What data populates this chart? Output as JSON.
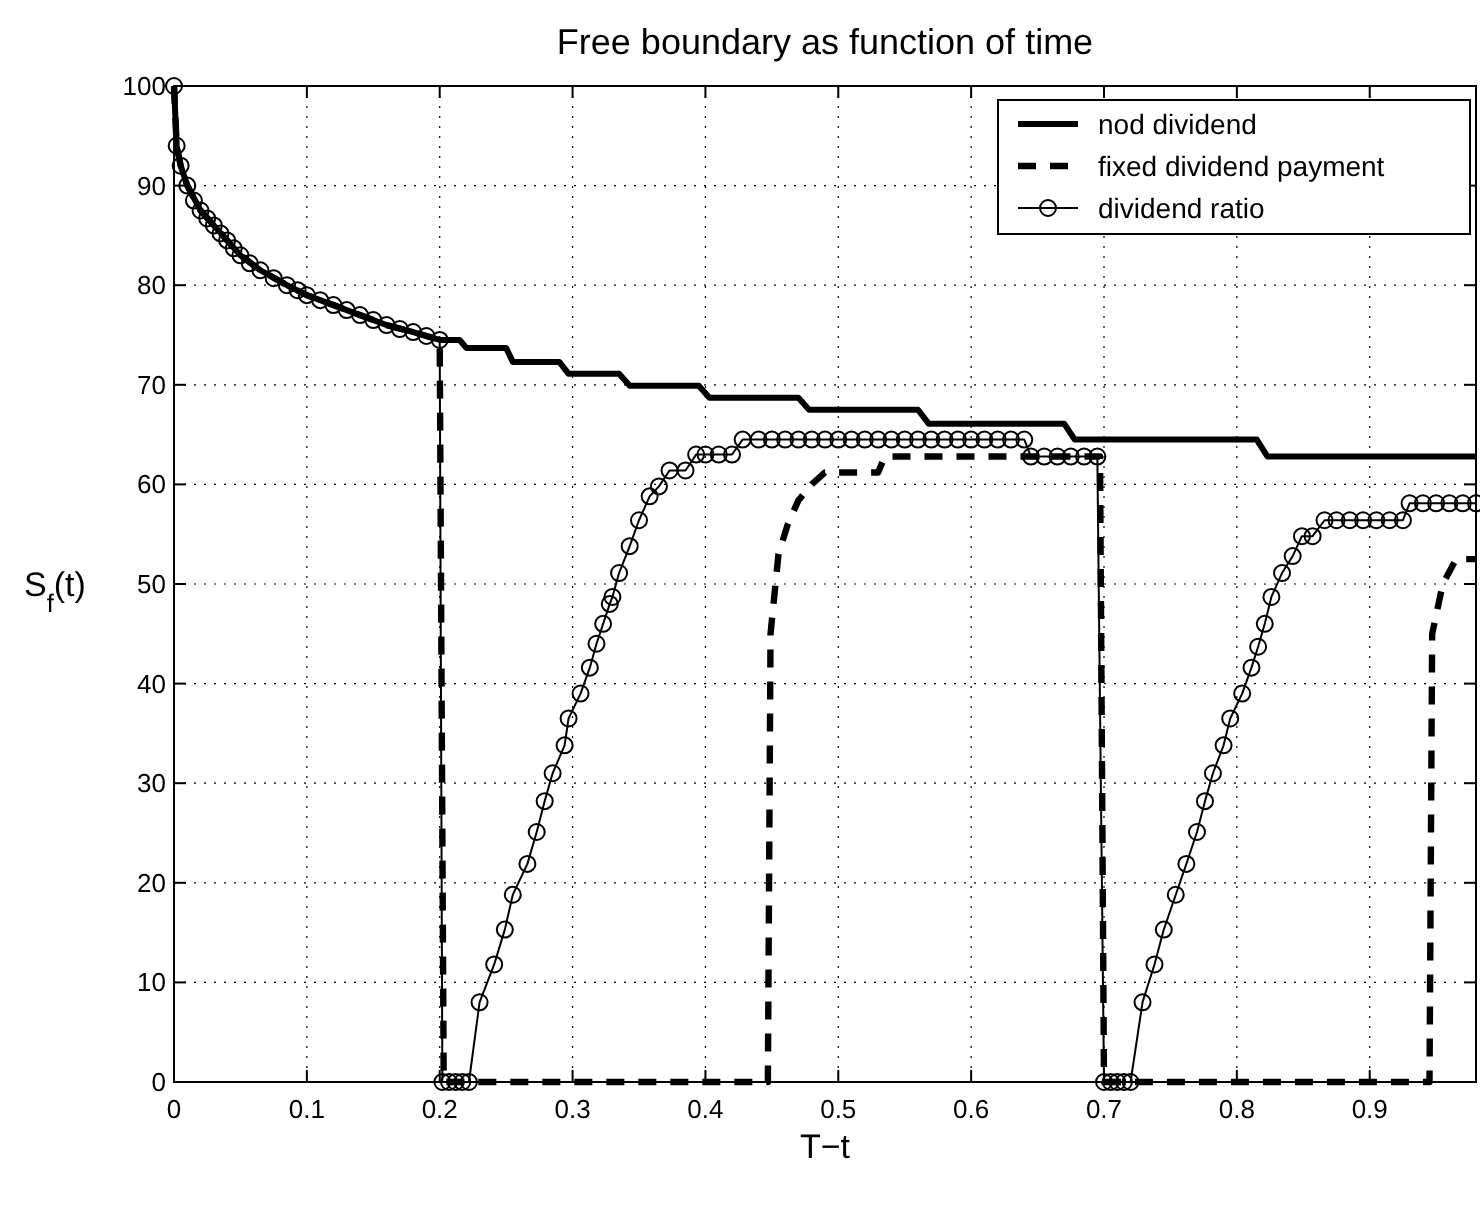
{
  "chart_data": {
    "type": "line",
    "title": "Free boundary as function of time",
    "xlabel": "T−t",
    "ylabel": "S$_{f}$(t)",
    "xlim": [
      0,
      0.98
    ],
    "ylim": [
      0,
      100
    ],
    "xticks": [
      0,
      0.1,
      0.2,
      0.3,
      0.4,
      0.5,
      0.6,
      0.7,
      0.8,
      0.9
    ],
    "yticks": [
      0,
      10,
      20,
      30,
      40,
      50,
      60,
      70,
      80,
      90,
      100
    ],
    "grid": true,
    "legend": "top right",
    "series": [
      {
        "name": "nod dividend",
        "color": "#000000",
        "line_style": "solid",
        "marker": "none",
        "x": [
          0,
          0.002,
          0.005,
          0.01,
          0.02,
          0.03,
          0.04,
          0.05,
          0.065,
          0.085,
          0.1,
          0.12,
          0.14,
          0.16,
          0.18,
          0.2,
          0.215,
          0.22,
          0.25,
          0.255,
          0.29,
          0.297,
          0.335,
          0.343,
          0.395,
          0.403,
          0.47,
          0.478,
          0.56,
          0.568,
          0.67,
          0.678,
          0.815,
          0.823,
          0.98
        ],
        "values": [
          100,
          94,
          92,
          90,
          87.5,
          86,
          84.5,
          83,
          81.5,
          80,
          79,
          78,
          77,
          76,
          75.3,
          74.5,
          74.5,
          73.7,
          73.7,
          72.3,
          72.3,
          71.1,
          71.1,
          69.9,
          69.9,
          68.7,
          68.7,
          67.5,
          67.5,
          66.1,
          66.1,
          64.5,
          64.5,
          62.8,
          62.8
        ]
      },
      {
        "name": "fixed dividend payment",
        "color": "#000000",
        "line_style": "dashed",
        "marker": "none",
        "x": [
          0,
          0.002,
          0.005,
          0.01,
          0.02,
          0.03,
          0.04,
          0.05,
          0.065,
          0.085,
          0.1,
          0.12,
          0.14,
          0.16,
          0.18,
          0.2,
          0.203,
          0.447,
          0.449,
          0.455,
          0.462,
          0.47,
          0.48,
          0.49,
          0.53,
          0.535,
          0.697,
          0.7,
          0.945,
          0.947,
          0.955,
          0.965,
          0.98
        ],
        "values": [
          100,
          94,
          92,
          90,
          87.5,
          86,
          84.5,
          83,
          81.5,
          80,
          79,
          78,
          77,
          76,
          75.3,
          74.5,
          0,
          0,
          45,
          53,
          56,
          58.4,
          60,
          61.2,
          61.2,
          62.8,
          62.8,
          0,
          0,
          45,
          50,
          52.5,
          52.5
        ]
      },
      {
        "name": "dividend ratio",
        "color": "#000000",
        "line_style": "solid",
        "marker": "circle",
        "x": [
          0,
          0.002,
          0.005,
          0.01,
          0.015,
          0.02,
          0.025,
          0.03,
          0.035,
          0.04,
          0.045,
          0.05,
          0.057,
          0.065,
          0.075,
          0.085,
          0.093,
          0.1,
          0.11,
          0.12,
          0.13,
          0.14,
          0.15,
          0.16,
          0.17,
          0.18,
          0.19,
          0.2,
          0.202,
          0.207,
          0.212,
          0.217,
          0.222,
          0.23,
          0.241,
          0.249,
          0.255,
          0.266,
          0.273,
          0.279,
          0.285,
          0.294,
          0.297,
          0.306,
          0.313,
          0.318,
          0.323,
          0.328,
          0.33,
          0.335,
          0.343,
          0.35,
          0.358,
          0.365,
          0.373,
          0.385,
          0.393,
          0.4,
          0.41,
          0.42,
          0.428,
          0.44,
          0.45,
          0.46,
          0.47,
          0.48,
          0.49,
          0.5,
          0.51,
          0.52,
          0.53,
          0.54,
          0.55,
          0.56,
          0.57,
          0.58,
          0.59,
          0.6,
          0.61,
          0.62,
          0.63,
          0.64,
          0.645,
          0.655,
          0.665,
          0.675,
          0.685,
          0.695,
          0.7,
          0.705,
          0.71,
          0.715,
          0.72,
          0.729,
          0.738,
          0.745,
          0.754,
          0.762,
          0.77,
          0.776,
          0.782,
          0.79,
          0.795,
          0.804,
          0.811,
          0.816,
          0.821,
          0.826,
          0.834,
          0.842,
          0.849,
          0.857,
          0.866,
          0.875,
          0.885,
          0.895,
          0.905,
          0.915,
          0.925,
          0.93,
          0.94,
          0.95,
          0.96,
          0.97,
          0.98
        ],
        "values": [
          100,
          94,
          92,
          90,
          88.5,
          87.5,
          86.7,
          86,
          85.2,
          84.5,
          83.7,
          83,
          82.2,
          81.5,
          80.7,
          80,
          79.5,
          79,
          78.5,
          78,
          77.5,
          77,
          76.5,
          76,
          75.6,
          75.3,
          74.9,
          74.5,
          0,
          0,
          0,
          0,
          0,
          8,
          11.8,
          15.3,
          18.8,
          21.9,
          25.1,
          28.2,
          31,
          33.8,
          36.5,
          39,
          41.6,
          44,
          46,
          48,
          48.7,
          51.1,
          53.8,
          56.4,
          58.8,
          59.8,
          61.4,
          61.4,
          63,
          63,
          63,
          63,
          64.5,
          64.5,
          64.5,
          64.5,
          64.5,
          64.5,
          64.5,
          64.5,
          64.5,
          64.5,
          64.5,
          64.5,
          64.5,
          64.5,
          64.5,
          64.5,
          64.5,
          64.5,
          64.5,
          64.5,
          64.5,
          64.5,
          62.8,
          62.8,
          62.8,
          62.8,
          62.8,
          62.8,
          0,
          0,
          0,
          0,
          0,
          8,
          11.8,
          15.3,
          18.8,
          21.9,
          25.1,
          28.2,
          31,
          33.8,
          36.5,
          39,
          41.6,
          43.7,
          46,
          48.7,
          51.1,
          52.8,
          54.8,
          54.8,
          56.4,
          56.4,
          56.4,
          56.4,
          56.4,
          56.4,
          56.4,
          58.1,
          58.1,
          58.1,
          58.1,
          58.1,
          58.1
        ]
      }
    ]
  }
}
